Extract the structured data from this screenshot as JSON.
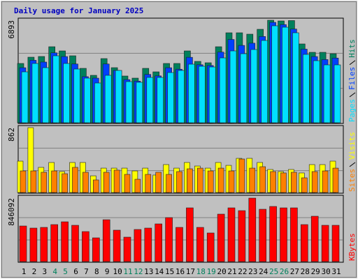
{
  "title": "Daily usage for January 2025",
  "chart_data": [
    {
      "type": "bar",
      "ylim": [
        0,
        6893
      ],
      "yticks": [
        6893
      ],
      "grid": true,
      "series": [
        {
          "name": "Hits",
          "color": "#00805c",
          "values": [
            3986,
            4408,
            4455,
            5111,
            4830,
            4502,
            3658,
            3189,
            4314,
            3704,
            3142,
            3001,
            3658,
            3423,
            3986,
            3986,
            4830,
            4126,
            4033,
            5111,
            6049,
            6049,
            5955,
            6283,
            6893,
            6846,
            6871,
            5299,
            4736,
            4736,
            4642
          ]
        },
        {
          "name": "Files",
          "color": "#0040ff",
          "values": [
            3700,
            4200,
            4080,
            4700,
            4450,
            3950,
            3100,
            3000,
            3950,
            3520,
            2900,
            2800,
            3250,
            3150,
            3700,
            3600,
            4400,
            3900,
            3850,
            4750,
            5600,
            5200,
            5350,
            5800,
            6750,
            6600,
            6300,
            4950,
            4450,
            4250,
            4350
          ]
        },
        {
          "name": "Pages",
          "color": "#00e0ff",
          "values": [
            3423,
            3986,
            3704,
            4501,
            3986,
            3611,
            3001,
            2673,
            3189,
            3517,
            2767,
            2720,
            3048,
            3048,
            3376,
            3517,
            3939,
            3798,
            3751,
            4361,
            4830,
            4642,
            4923,
            5533,
            6518,
            6424,
            6049,
            4595,
            4173,
            3892,
            3892
          ]
        }
      ]
    },
    {
      "type": "bar",
      "ylim": [
        0,
        862
      ],
      "yticks": [
        862
      ],
      "grid": true,
      "series": [
        {
          "name": "Visits",
          "color": "#ffff00",
          "values": [
            417,
            862,
            334,
            399,
            278,
            399,
            399,
            222,
            324,
            324,
            324,
            287,
            324,
            232,
            371,
            324,
            399,
            352,
            324,
            399,
            361,
            454,
            454,
            399,
            306,
            278,
            306,
            260,
            371,
            371,
            417
          ]
        },
        {
          "name": "Sites",
          "color": "#ff8000",
          "values": [
            287,
            287,
            269,
            287,
            250,
            334,
            269,
            167,
            269,
            297,
            241,
            176,
            241,
            269,
            241,
            278,
            315,
            324,
            287,
            324,
            287,
            445,
            324,
            343,
            278,
            260,
            269,
            195,
            278,
            287,
            324
          ]
        }
      ]
    },
    {
      "type": "bar",
      "ylim": [
        0,
        846092
      ],
      "yticks": [
        846092
      ],
      "grid": true,
      "categories": [
        "1",
        "2",
        "3",
        "4",
        "5",
        "6",
        "7",
        "8",
        "9",
        "10",
        "11",
        "12",
        "13",
        "14",
        "15",
        "16",
        "17",
        "18",
        "19",
        "20",
        "21",
        "22",
        "23",
        "24",
        "25",
        "26",
        "27",
        "28",
        "29",
        "30",
        "31"
      ],
      "category_colors": [
        "#000000",
        "#000000",
        "#000000",
        "#00805c",
        "#00805c",
        "#000000",
        "#000000",
        "#000000",
        "#000000",
        "#000000",
        "#00805c",
        "#00805c",
        "#000000",
        "#000000",
        "#000000",
        "#000000",
        "#000000",
        "#00805c",
        "#00805c",
        "#000000",
        "#000000",
        "#000000",
        "#000000",
        "#000000",
        "#00805c",
        "#00805c",
        "#000000",
        "#000000",
        "#000000",
        "#000000",
        "#000000"
      ],
      "series": [
        {
          "name": "KBytes",
          "color": "#ff0000",
          "values": [
            474198,
            446304,
            455602,
            492794,
            529986,
            483496,
            399814,
            316132,
            557880,
            418410,
            325430,
            427708,
            446304,
            502092,
            585774,
            455602,
            715946,
            455602,
            381218,
            632264,
            715946,
            678754,
            846092,
            697350,
            734542,
            715946,
            715946,
            492794,
            604370,
            483496,
            483496
          ]
        }
      ]
    }
  ]
}
